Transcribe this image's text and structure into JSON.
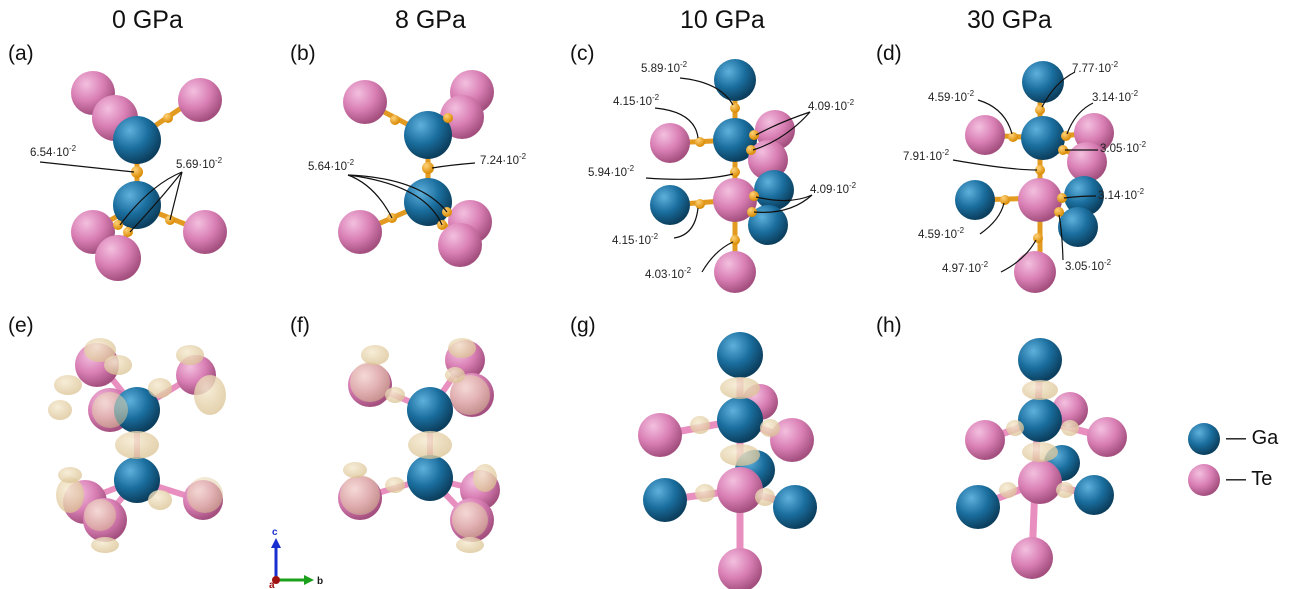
{
  "column_titles": [
    "0 GPa",
    "8 GPa",
    "10 GPa",
    "30 GPa"
  ],
  "panel_labels": [
    "(a)",
    "(b)",
    "(c)",
    "(d)",
    "(e)",
    "(f)",
    "(g)",
    "(h)"
  ],
  "annotations": {
    "a": [
      "6.54·10",
      "5.69·10"
    ],
    "b": [
      "5.64·10",
      "7.24·10"
    ],
    "c": [
      "5.89·10",
      "4.15·10",
      "4.09·10",
      "5.94·10",
      "4.09·10",
      "4.15·10",
      "4.03·10"
    ],
    "d": [
      "7.77·10",
      "4.59·10",
      "3.14·10",
      "3.05·10",
      "7.91·10",
      "3.14·10",
      "4.59·10",
      "4.97·10",
      "3.05·10"
    ],
    "exponent": "-2"
  },
  "legend": {
    "items": [
      {
        "symbol": "—",
        "label": "Ga"
      },
      {
        "symbol": "—",
        "label": "Te"
      }
    ]
  },
  "axes": {
    "labels": [
      "c",
      "a",
      "b"
    ]
  },
  "colors": {
    "ga": "#1a6e9e",
    "te": "#d97fb5",
    "bond_point": "#f0a520",
    "density": "#e8d6ad"
  }
}
